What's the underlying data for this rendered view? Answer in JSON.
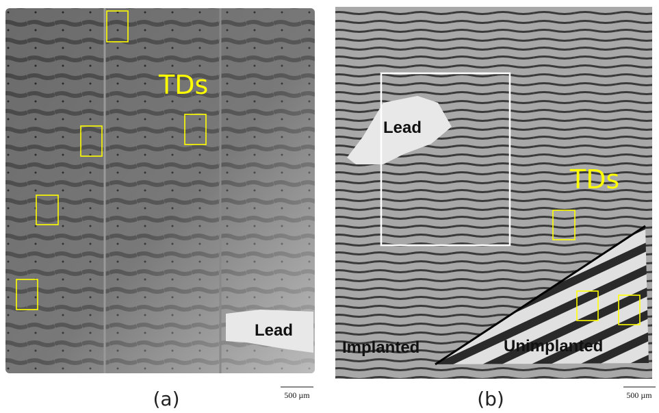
{
  "panels": [
    {
      "labels": {
        "defects": "TDs",
        "lead": "Lead"
      },
      "caption": "(a)",
      "scale_bar": "500 µm"
    },
    {
      "labels": {
        "defects": "TDs",
        "lead": "Lead",
        "implanted": "Implanted",
        "unimplanted": "Unimplanted"
      },
      "caption": "(b)",
      "scale_bar": "500 µm"
    }
  ]
}
